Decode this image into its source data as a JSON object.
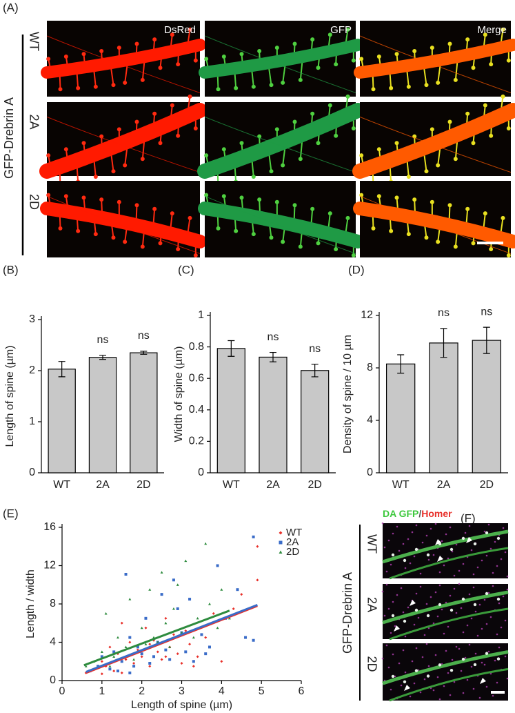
{
  "panel_a": {
    "label": "(A)",
    "side_label": "GFP-Drebrin A",
    "columns": [
      "DsRed",
      "GFP",
      "Merge"
    ],
    "rows": [
      "WT",
      "2A",
      "2D"
    ]
  },
  "chart_data": [
    {
      "type": "bar",
      "label": "(B)",
      "ylabel": "Length of spine (µm)",
      "categories": [
        "WT",
        "2A",
        "2D"
      ],
      "values": [
        2.03,
        2.26,
        2.35
      ],
      "errors": [
        0.15,
        0.04,
        0.03
      ],
      "annotations": [
        null,
        "ns",
        "ns"
      ],
      "color": "#c8c8c8",
      "ylim": [
        0,
        3
      ],
      "yticks": [
        0,
        1,
        2,
        3
      ]
    },
    {
      "type": "bar",
      "label": "(C)",
      "ylabel": "Width of spine (µm)",
      "categories": [
        "WT",
        "2A",
        "2D"
      ],
      "values": [
        0.79,
        0.735,
        0.65
      ],
      "errors": [
        0.05,
        0.03,
        0.04
      ],
      "annotations": [
        null,
        "ns",
        "ns"
      ],
      "color": "#c8c8c8",
      "ylim": [
        0,
        1
      ],
      "yticks": [
        0,
        0.2,
        0.4,
        0.6,
        0.8,
        1
      ]
    },
    {
      "type": "bar",
      "label": "(D)",
      "ylabel": "Density of spine / 10 µm",
      "categories": [
        "WT",
        "2A",
        "2D"
      ],
      "values": [
        8.3,
        9.9,
        10.1
      ],
      "errors": [
        0.7,
        1.1,
        1.0
      ],
      "annotations": [
        null,
        "ns",
        "ns"
      ],
      "color": "#c8c8c8",
      "ylim": [
        0,
        12
      ],
      "yticks": [
        0,
        4,
        8,
        12
      ]
    },
    {
      "type": "scatter",
      "label": "(E)",
      "xlabel": "Length of spine (µm)",
      "ylabel": "Length / width",
      "xlim": [
        0,
        6
      ],
      "xticks": [
        0,
        1,
        2,
        3,
        4,
        5,
        6
      ],
      "ylim": [
        0,
        16
      ],
      "yticks": [
        0,
        4,
        8,
        12,
        16
      ],
      "legend": "upper right",
      "series": [
        {
          "name": "WT",
          "color": "#e8302a",
          "marker": "diamond",
          "x": [
            0.6,
            0.8,
            1.0,
            1.1,
            1.2,
            1.3,
            1.4,
            1.5,
            1.6,
            1.7,
            1.8,
            1.9,
            2.0,
            2.1,
            2.2,
            2.3,
            2.4,
            2.5,
            2.6,
            2.7,
            2.8,
            2.9,
            3.0,
            3.1,
            3.2,
            3.4,
            3.6,
            3.8,
            4.0,
            4.3,
            4.5,
            4.9,
            4.9,
            1.5,
            2.2,
            1.0,
            2.6,
            3.3
          ],
          "values": [
            0.8,
            1.2,
            2.0,
            1.5,
            3.5,
            1.0,
            2.8,
            6.0,
            2.2,
            4.0,
            1.8,
            3.2,
            2.5,
            5.5,
            1.5,
            4.2,
            3.0,
            2.2,
            6.5,
            3.5,
            4.8,
            2.8,
            1.8,
            5.2,
            3.8,
            2.5,
            4.5,
            7.0,
            2.0,
            7.5,
            9.0,
            14.0,
            10.5,
            0.8,
            3.8,
            0.7,
            2.5,
            1.5
          ],
          "fit": {
            "x": [
              0.6,
              4.9
            ],
            "y": [
              0.8,
              7.8
            ]
          }
        },
        {
          "name": "2A",
          "color": "#3a6cc8",
          "marker": "square",
          "x": [
            0.7,
            0.9,
            1.0,
            1.2,
            1.3,
            1.5,
            1.6,
            1.7,
            1.8,
            1.9,
            2.0,
            2.1,
            2.2,
            2.4,
            2.5,
            2.6,
            2.7,
            2.8,
            3.0,
            3.1,
            3.2,
            3.3,
            3.5,
            3.7,
            3.9,
            4.1,
            4.4,
            4.6,
            4.8,
            4.8,
            1.7,
            2.3,
            1.4,
            2.9,
            3.6
          ],
          "values": [
            1.0,
            1.5,
            2.5,
            1.2,
            3.0,
            2.0,
            11.1,
            4.5,
            1.5,
            3.5,
            2.8,
            6.5,
            1.8,
            4.0,
            9.0,
            3.2,
            2.2,
            10.5,
            5.0,
            3.0,
            8.5,
            2.0,
            4.8,
            3.5,
            12.0,
            6.5,
            9.5,
            4.5,
            15.0,
            4.2,
            0.8,
            2.5,
            1.0,
            7.5,
            2.8
          ],
          "fit": {
            "x": [
              0.6,
              4.9
            ],
            "y": [
              0.9,
              7.9
            ]
          }
        },
        {
          "name": "2D",
          "color": "#2e8b3e",
          "marker": "triangle",
          "x": [
            0.6,
            0.8,
            1.0,
            1.1,
            1.3,
            1.4,
            1.6,
            1.7,
            1.8,
            2.0,
            2.1,
            2.2,
            2.3,
            2.5,
            2.6,
            2.7,
            2.8,
            3.0,
            3.1,
            3.3,
            3.4,
            3.6,
            3.7,
            3.9,
            4.0,
            4.2,
            1.2,
            1.9,
            2.4,
            2.9
          ],
          "values": [
            1.5,
            2.0,
            3.0,
            7.0,
            2.5,
            4.5,
            3.5,
            8.5,
            2.2,
            5.5,
            3.8,
            9.5,
            4.5,
            11.3,
            6.0,
            3.5,
            7.5,
            5.0,
            12.5,
            4.5,
            6.5,
            14.3,
            8.0,
            5.5,
            9.5,
            6.5,
            1.5,
            3.0,
            4.0,
            10.0
          ],
          "fit": {
            "x": [
              0.55,
              4.2
            ],
            "y": [
              1.6,
              7.3
            ]
          }
        }
      ]
    }
  ],
  "panel_f": {
    "label": "(F)",
    "title_parts": [
      "DA GFP",
      "/",
      "Homer"
    ],
    "side_label": "GFP-Drebrin A",
    "rows": [
      "WT",
      "2A",
      "2D"
    ]
  }
}
